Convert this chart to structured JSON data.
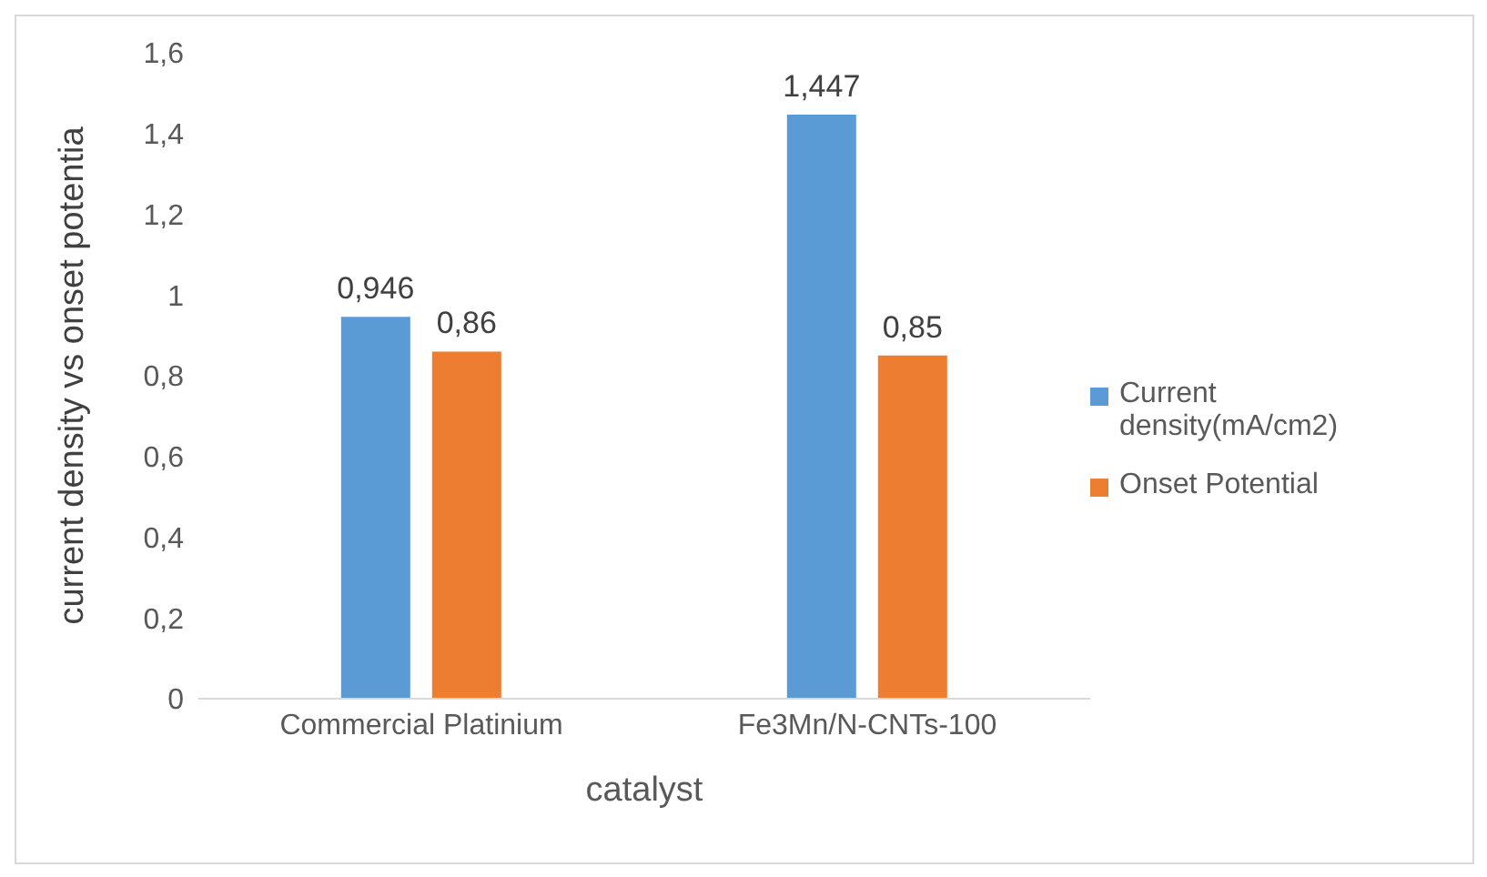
{
  "chart_data": {
    "type": "bar",
    "xlabel": "catalyst",
    "ylabel": "current density vs onset potentia",
    "categories": [
      "Commercial Platinium",
      "Fe3Mn/N-CNTs-100"
    ],
    "series": [
      {
        "name": "Current density(mA/cm2)",
        "color": "#5b9bd5",
        "values": [
          0.946,
          1.447
        ],
        "value_labels": [
          "0,946",
          "1,447"
        ]
      },
      {
        "name": "Onset Potential",
        "color": "#ed7d31",
        "values": [
          0.86,
          0.85
        ],
        "value_labels": [
          "0,86",
          "0,85"
        ]
      }
    ],
    "ylim": [
      0,
      1.6
    ],
    "yticks": [
      0,
      {
        "value": 0.2,
        "label": "0,2"
      },
      {
        "value": 0.4,
        "label": "0,4"
      },
      {
        "value": 0.6,
        "label": "0,6"
      },
      {
        "value": 0.8,
        "label": "0,8"
      },
      1,
      {
        "value": 1.2,
        "label": "1,2"
      },
      {
        "value": 1.4,
        "label": "1,4"
      },
      {
        "value": 1.6,
        "label": "1,6"
      }
    ],
    "grid": false,
    "legend": "right"
  }
}
